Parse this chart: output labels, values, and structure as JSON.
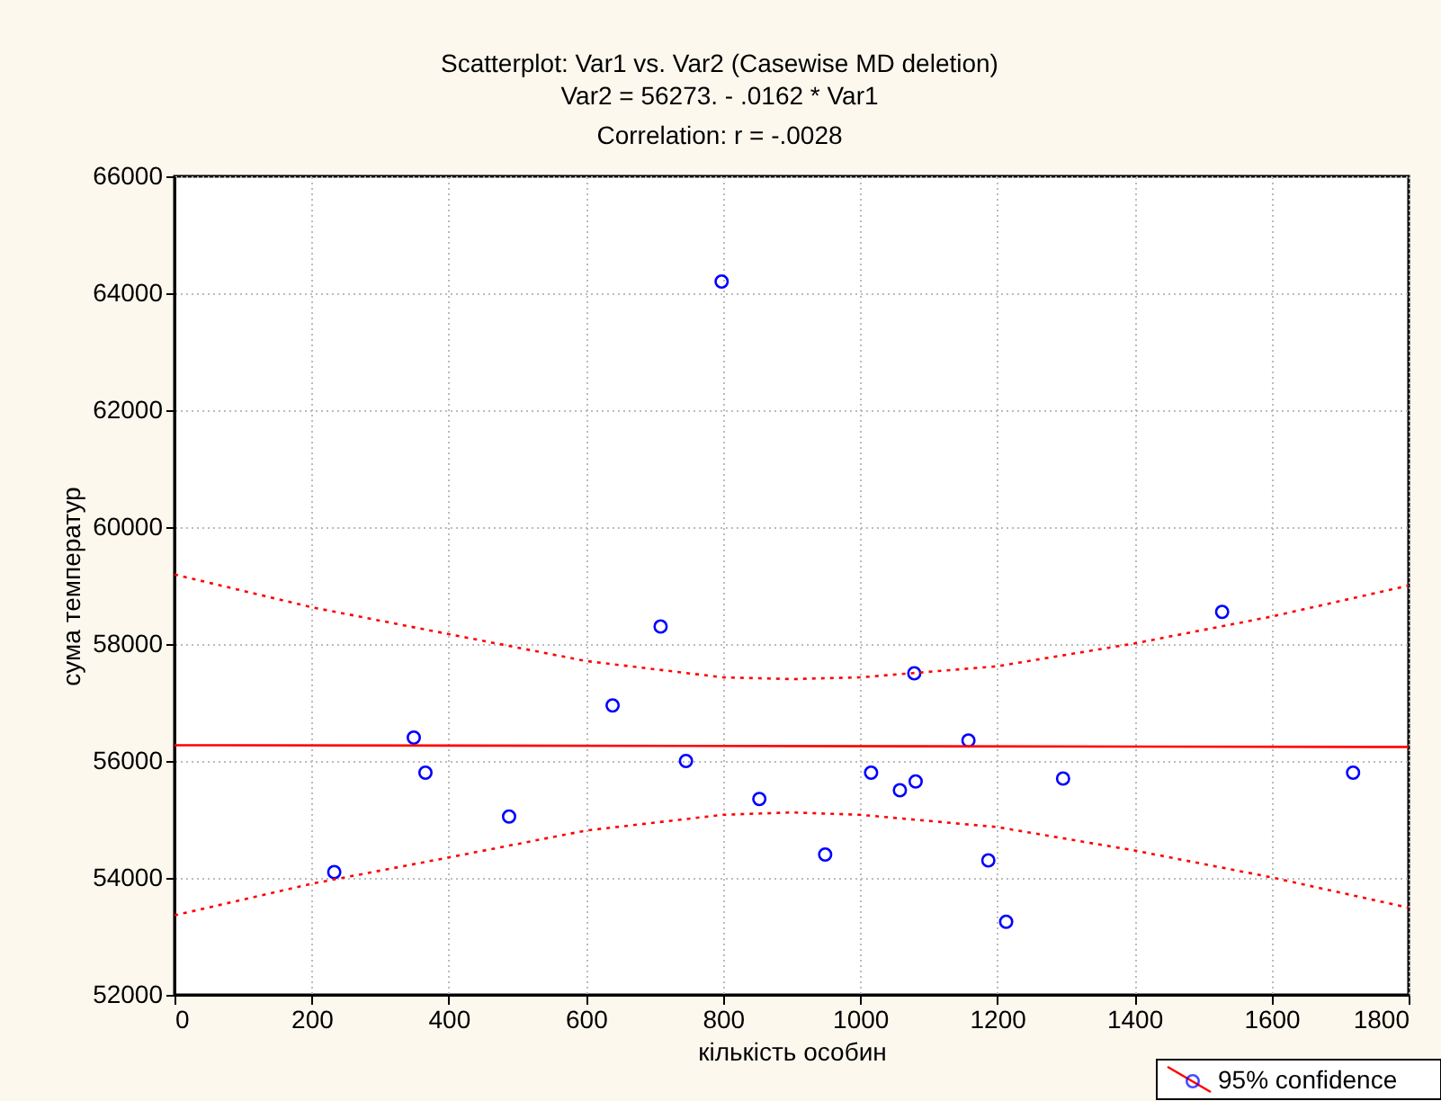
{
  "chart_data": {
    "type": "scatter",
    "title": "Scatterplot: Var1 vs. Var2 (Casewise MD deletion)",
    "subtitle": "Var2 = 56273. - .0162 * Var1\nCorrelation: r = -.0028",
    "xlabel": "кількість особин",
    "ylabel": "сума температур",
    "xlim": [
      0,
      1800
    ],
    "xticks": [
      0,
      200,
      400,
      600,
      800,
      1000,
      1200,
      1400,
      1600,
      1800
    ],
    "ylim": [
      52000,
      66000
    ],
    "yticks": [
      52000,
      54000,
      56000,
      58000,
      60000,
      62000,
      64000,
      66000
    ],
    "grid": true,
    "legend": "bottom right",
    "series": [
      {
        "name": "95% confidence",
        "type": "scatter",
        "marker": "circle",
        "color": "#0000ff",
        "x": [
          233,
          349,
          366,
          488,
          639,
          709,
          746,
          798,
          853,
          949,
          1016,
          1058,
          1079,
          1081,
          1158,
          1187,
          1213,
          1296,
          1528,
          1719
        ],
        "values": [
          54100,
          56400,
          55800,
          55050,
          56950,
          58300,
          56000,
          64200,
          55350,
          54400,
          55800,
          55500,
          57500,
          55650,
          56350,
          54300,
          53250,
          55700,
          58550,
          55800
        ]
      },
      {
        "type": "line",
        "color": "#ff0000",
        "line_style": "solid",
        "x": [
          0,
          1800
        ],
        "values": [
          56270,
          56240
        ]
      },
      {
        "type": "line",
        "color": "#ff0000",
        "line_style": "dotted",
        "x": [
          0,
          200,
          400,
          600,
          800,
          900,
          1000,
          1200,
          1400,
          1600,
          1800
        ],
        "values": [
          59190,
          58630,
          58170,
          57710,
          57430,
          57400,
          57430,
          57620,
          58010,
          58470,
          59000
        ]
      },
      {
        "type": "line",
        "color": "#ff0000",
        "line_style": "dotted",
        "x": [
          0,
          200,
          400,
          600,
          800,
          900,
          1000,
          1200,
          1400,
          1600,
          1800
        ],
        "values": [
          53360,
          53900,
          54350,
          54810,
          55080,
          55120,
          55080,
          54870,
          54470,
          54010,
          53490
        ]
      }
    ]
  }
}
